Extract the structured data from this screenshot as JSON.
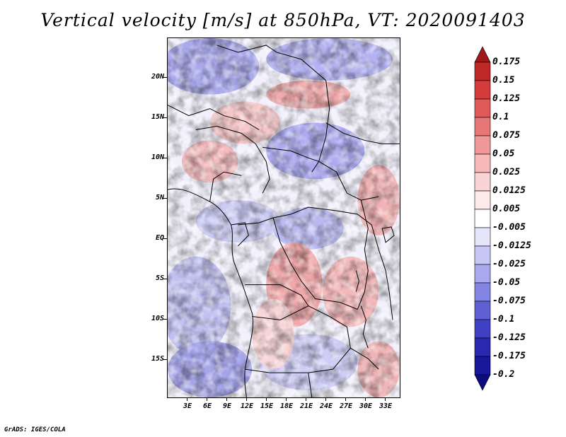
{
  "title": "Vertical velocity [m/s] at 850hPa, VT: 2020091403",
  "lat_labels": [
    "20N",
    "15N",
    "10N",
    "5N",
    "EQ",
    "5S",
    "10S",
    "15S"
  ],
  "lon_labels": [
    "3E",
    "6E",
    "9E",
    "12E",
    "15E",
    "18E",
    "21E",
    "24E",
    "27E",
    "30E",
    "33E"
  ],
  "colorbar": {
    "labels": [
      "0.175",
      "0.15",
      "0.125",
      "0.1",
      "0.075",
      "0.05",
      "0.025",
      "0.0125",
      "0.005",
      "-0.005",
      "-0.0125",
      "-0.025",
      "-0.05",
      "-0.075",
      "-0.1",
      "-0.125",
      "-0.175",
      "-0.2"
    ],
    "colors": [
      "#a01818",
      "#c02828",
      "#d43c3c",
      "#e05a5a",
      "#e87878",
      "#f09898",
      "#f6b8b8",
      "#fad4d4",
      "#fdeaea",
      "#ffffff",
      "#e6e6fa",
      "#c8c8f4",
      "#a8a8ee",
      "#8484e4",
      "#6060d4",
      "#4040c4",
      "#2828b0",
      "#18189a",
      "#0c0c80"
    ]
  },
  "footer": "GrADS: IGES/COLA"
}
